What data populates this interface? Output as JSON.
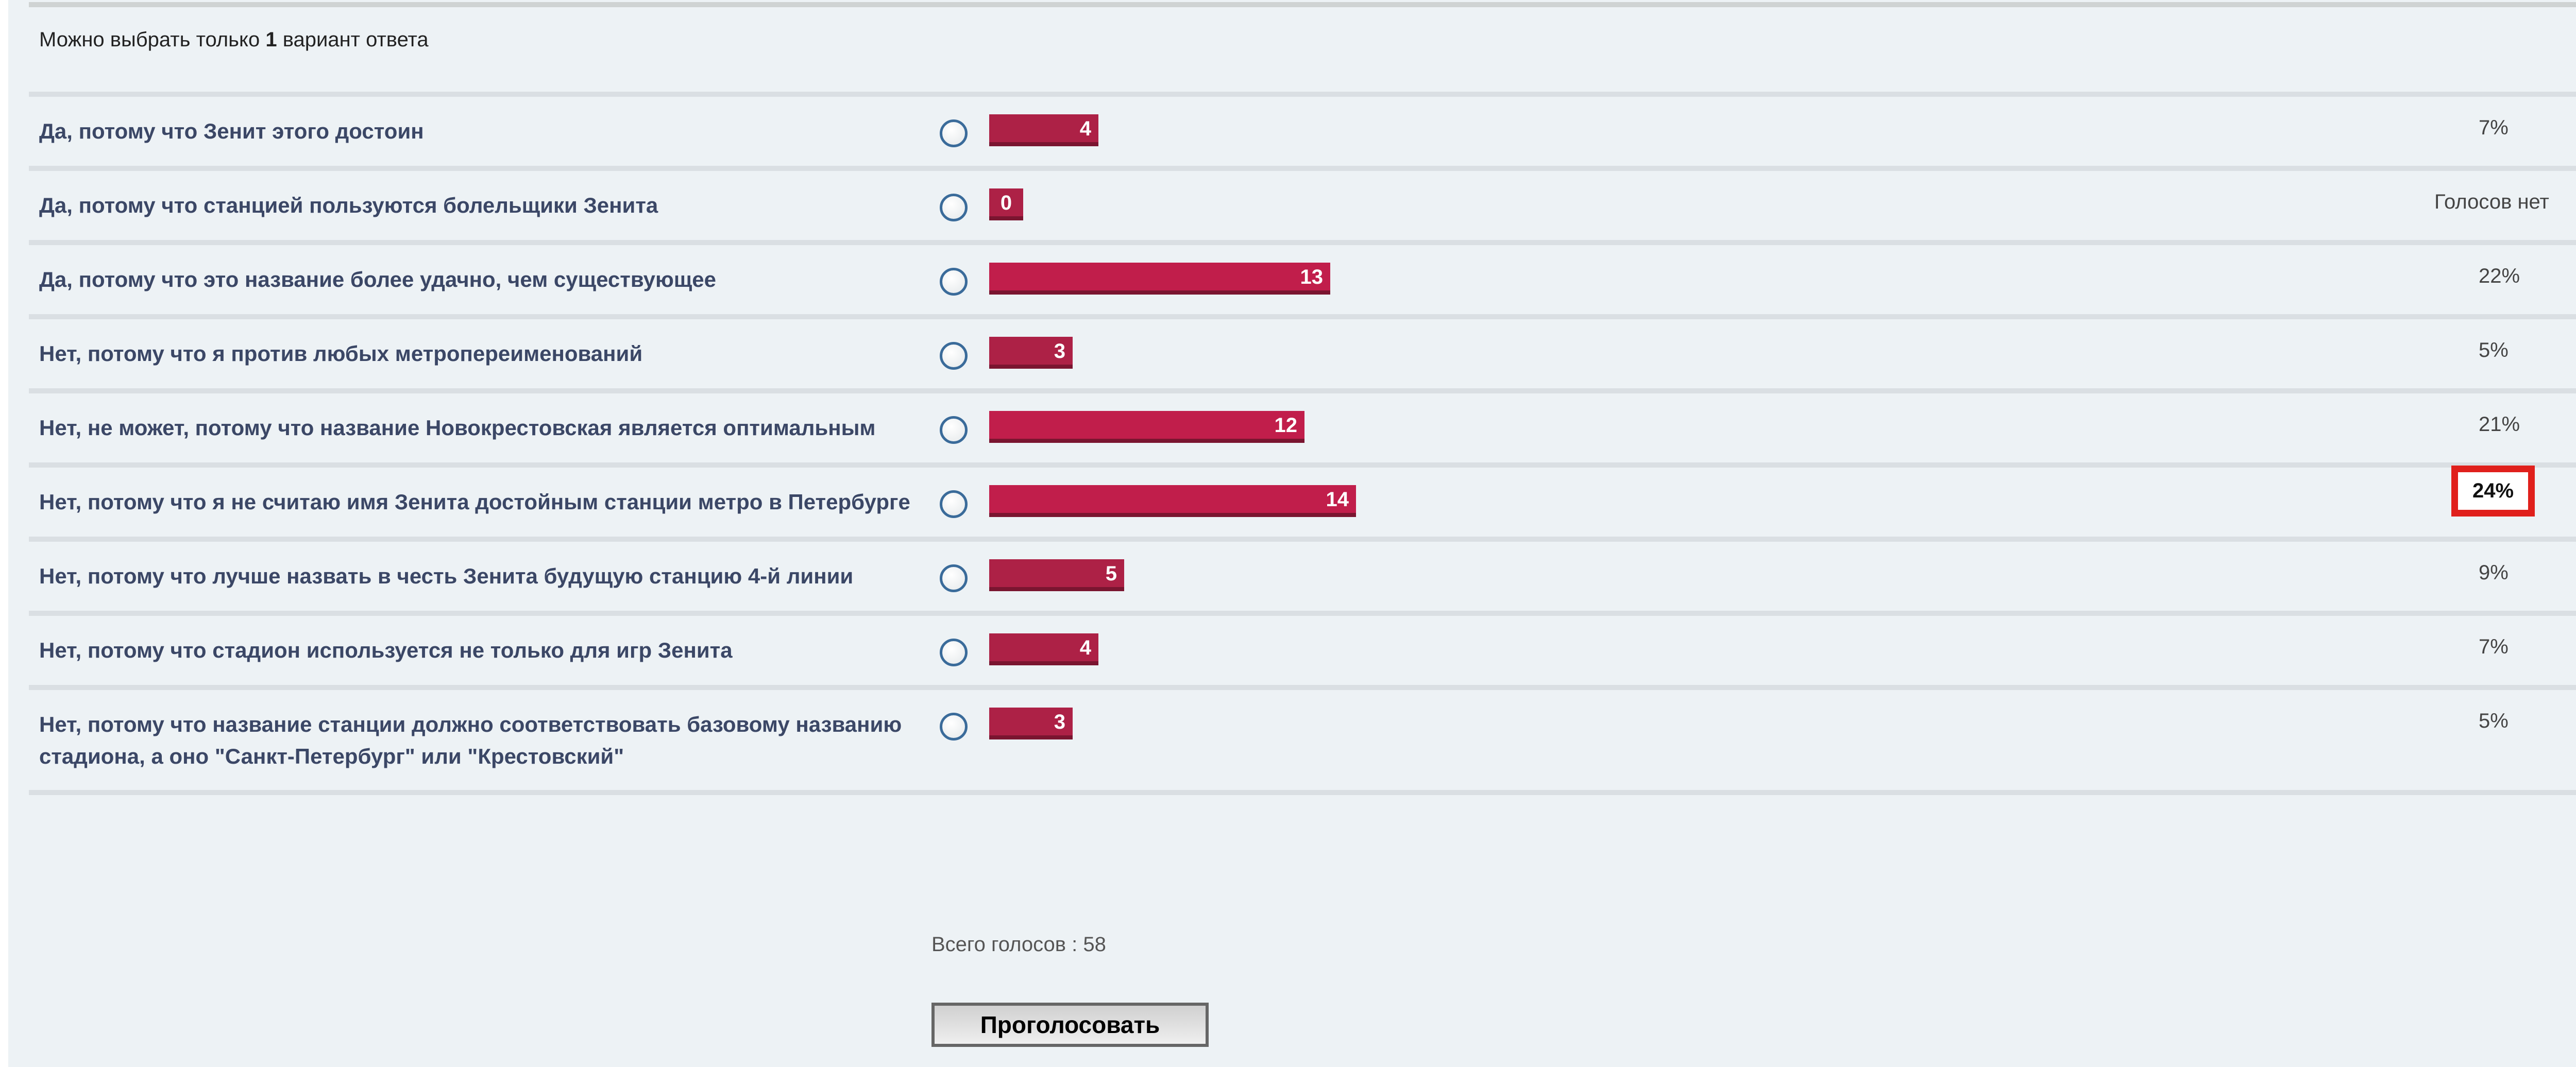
{
  "poll": {
    "hint_prefix": "Можно выбрать только",
    "hint_count": "1",
    "hint_suffix": "вариант ответа",
    "options": [
      {
        "label": "Да, потому что Зенит этого достоин",
        "votes": 4,
        "percent": "7%",
        "color": "#ad2146"
      },
      {
        "label": "Да, потому что станцией пользуются болельщики Зенита",
        "votes": 0,
        "percent": "Голосов нет",
        "color": "#ad2146"
      },
      {
        "label": "Да, потому что это название более удачно, чем существующее",
        "votes": 13,
        "percent": "22%",
        "color": "#c11e4b"
      },
      {
        "label": "Нет, потому что я против любых метропереименований",
        "votes": 3,
        "percent": "5%",
        "color": "#ad2146"
      },
      {
        "label": "Нет, не может, потому что название Новокрестовская является оптимальным",
        "votes": 12,
        "percent": "21%",
        "color": "#c11e4b"
      },
      {
        "label": "Нет, потому что я не считаю имя Зенита достойным станции метро в Петербурге",
        "votes": 14,
        "percent": "24%",
        "color": "#c11e4b",
        "highlighted": true
      },
      {
        "label": "Нет, потому что лучше назвать в честь Зенита будущую станцию 4-й линии",
        "votes": 5,
        "percent": "9%",
        "color": "#ad2146"
      },
      {
        "label": "Нет, потому что стадион используется не только для игр Зенита",
        "votes": 4,
        "percent": "7%",
        "color": "#ad2146"
      },
      {
        "label": "Нет, потому что название станции должно соответствовать базовому названию стадиона, а оно \"Санкт-Петербург\" или \"Крестовский\"",
        "votes": 3,
        "percent": "5%",
        "color": "#ad2146"
      }
    ],
    "total_label": "Всего голосов : 58",
    "vote_button": "Проголосовать",
    "highlight_color": "#e0201c"
  }
}
